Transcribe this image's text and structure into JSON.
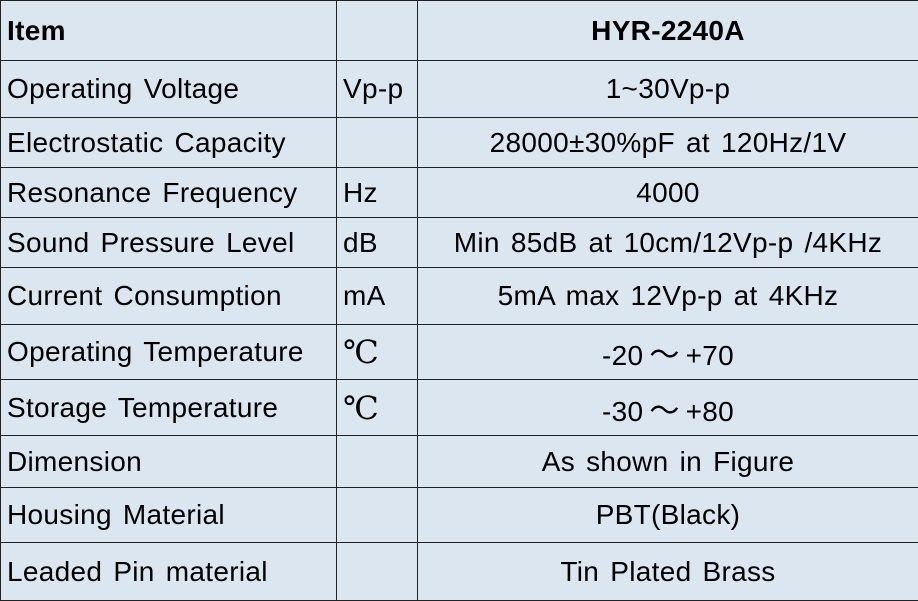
{
  "table": {
    "header": {
      "item": "Item",
      "unit": "",
      "value": "HYR-2240A"
    },
    "rows": [
      {
        "item": "Operating Voltage",
        "unit": "Vp-p",
        "value": "1~30Vp-p"
      },
      {
        "item": "Electrostatic Capacity",
        "unit": "",
        "value": "28000±30%pF at 120Hz/1V"
      },
      {
        "item": "Resonance Frequency",
        "unit": "Hz",
        "value": "4000"
      },
      {
        "item": "Sound Pressure Level",
        "unit": "dB",
        "value": "Min 85dB at 10cm/12Vp-p /4KHz"
      },
      {
        "item": "Current Consumption",
        "unit": "mA",
        "value": "5mA max 12Vp-p at 4KHz"
      },
      {
        "item": "Operating Temperature",
        "unit": "℃",
        "value_from": "-20",
        "value_sep": "～",
        "value_to": "+70"
      },
      {
        "item": "Storage Temperature",
        "unit": "℃",
        "value_from": "-30",
        "value_sep": "～",
        "value_to": "+80"
      },
      {
        "item": "Dimension",
        "unit": "",
        "value": "As shown in Figure"
      },
      {
        "item": "Housing Material",
        "unit": "",
        "value": "PBT(Black)"
      },
      {
        "item": "Leaded Pin material",
        "unit": "",
        "value": "Tin Plated Brass"
      }
    ]
  },
  "colors": {
    "cell_background": "#dce6f1",
    "border": "#222222",
    "text": "#000000"
  }
}
